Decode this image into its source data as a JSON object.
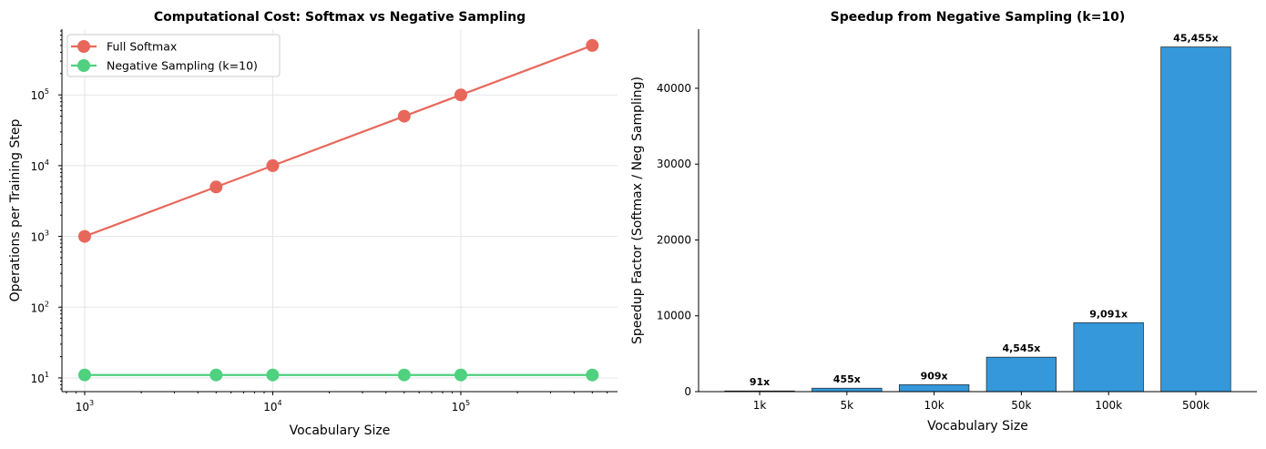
{
  "chart_data": [
    {
      "type": "line",
      "title": "Computational Cost: Softmax vs Negative Sampling",
      "xlabel": "Vocabulary Size",
      "ylabel": "Operations per Training Step",
      "xscale": "log",
      "yscale": "log",
      "xlim": [
        757,
        681000
      ],
      "ylim": [
        6.4,
        850000
      ],
      "x_ticks": [
        1000,
        10000,
        100000
      ],
      "x_tick_labels": [
        [
          "10",
          "3"
        ],
        [
          "10",
          "4"
        ],
        [
          "10",
          "5"
        ]
      ],
      "y_ticks": [
        10,
        100,
        1000,
        10000,
        100000
      ],
      "y_tick_labels": [
        [
          "10",
          "1"
        ],
        [
          "10",
          "2"
        ],
        [
          "10",
          "3"
        ],
        [
          "10",
          "4"
        ],
        [
          "10",
          "5"
        ]
      ],
      "grid": true,
      "legend_position": "top-left",
      "x": [
        1000,
        5000,
        10000,
        50000,
        100000,
        500000
      ],
      "series": [
        {
          "name": "Full Softmax",
          "color": "#e8675b",
          "values": [
            1000,
            5000,
            10000,
            50000,
            100000,
            500000
          ]
        },
        {
          "name": "Negative Sampling (k=10)",
          "color": "#4fd17f",
          "values": [
            11,
            11,
            11,
            11,
            11,
            11
          ]
        }
      ]
    },
    {
      "type": "bar",
      "title": "Speedup from Negative Sampling (k=10)",
      "xlabel": "Vocabulary Size",
      "ylabel": "Speedup Factor (Softmax / Neg Sampling)",
      "categories": [
        "1k",
        "5k",
        "10k",
        "50k",
        "100k",
        "500k"
      ],
      "values": [
        91,
        455,
        909,
        4545,
        9091,
        45455
      ],
      "data_labels": [
        "91x",
        "455x",
        "909x",
        "4,545x",
        "9,091x",
        "45,455x"
      ],
      "ylim": [
        0,
        47800
      ],
      "y_ticks": [
        0,
        10000,
        20000,
        30000,
        40000
      ],
      "color": "#3498db",
      "grid": false
    }
  ]
}
